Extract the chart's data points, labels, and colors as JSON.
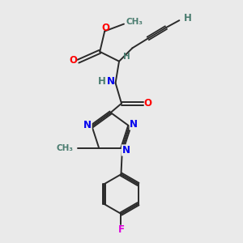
{
  "bg_color": "#eaeaea",
  "atom_color_C": "#4a7c6f",
  "atom_color_N": "#0000ee",
  "atom_color_O": "#ff0000",
  "atom_color_F": "#dd00dd",
  "atom_color_H": "#4a7c6f",
  "bond_color": "#2a2a2a",
  "title": "",
  "xlim": [
    0,
    10
  ],
  "ylim": [
    0,
    10
  ]
}
